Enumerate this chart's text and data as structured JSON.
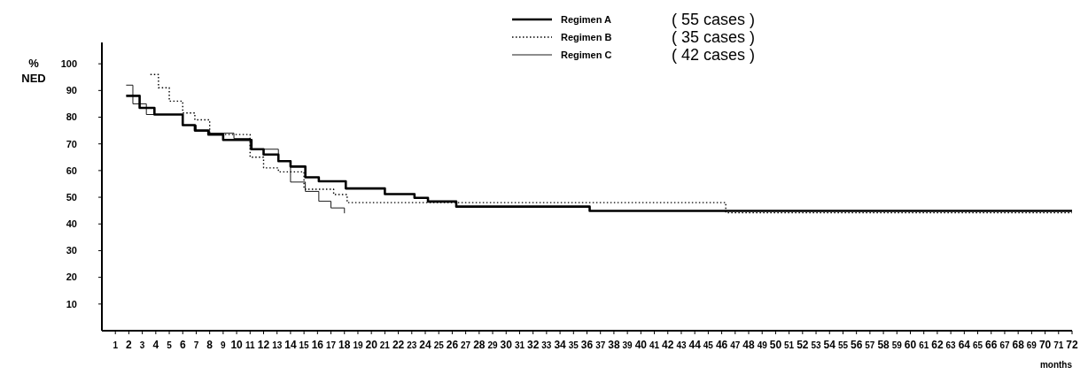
{
  "chart_data": {
    "type": "step",
    "ylabel": "% NED",
    "xlabel": "months",
    "xlim": [
      0,
      72
    ],
    "xticks": [
      1,
      2,
      3,
      4,
      5,
      6,
      7,
      8,
      9,
      10,
      11,
      12,
      13,
      14,
      15,
      16,
      17,
      18,
      19,
      20,
      21,
      22,
      23,
      24,
      25,
      26,
      27,
      28,
      29,
      30,
      31,
      32,
      33,
      34,
      35,
      36,
      37,
      38,
      39,
      40,
      41,
      42,
      43,
      44,
      45,
      46,
      47,
      48,
      49,
      50,
      51,
      52,
      53,
      54,
      55,
      56,
      57,
      58,
      59,
      60,
      61,
      62,
      63,
      64,
      65,
      66,
      67,
      68,
      69,
      70,
      71,
      72
    ],
    "ylim": [
      0,
      108
    ],
    "yticks": [
      10,
      20,
      30,
      40,
      50,
      60,
      70,
      80,
      90,
      100
    ],
    "grid": false,
    "legend": "top",
    "marker": "none",
    "annotations": [
      "( 55 cases )",
      "( 35 cases )",
      "( 42 cases )"
    ],
    "series": [
      {
        "name": "Regimen A",
        "color": "#000000",
        "line_style": "solid",
        "x": [
          1.8,
          2.8,
          3.9,
          6.0,
          6.9,
          7.9,
          9.0,
          11.1,
          12.0,
          13.1,
          14.0,
          15.1,
          16.1,
          18.1,
          21.0,
          23.2,
          24.2,
          26.3,
          36.2,
          72
        ],
        "values": [
          88,
          83.5,
          81,
          77,
          75,
          73.5,
          71.5,
          68,
          66,
          63.5,
          61.5,
          57.5,
          56,
          53.3,
          51.2,
          49.8,
          48.4,
          46.5,
          44.9,
          44.9
        ]
      },
      {
        "name": "Regimen B",
        "color": "#000000",
        "line_style": "dotted",
        "x": [
          3.6,
          4.2,
          5.0,
          6.0,
          6.9,
          8.0,
          11.0,
          12.0,
          13.1,
          15.0,
          17.2,
          18.2,
          46.3,
          72
        ],
        "values": [
          96,
          91,
          86,
          81.6,
          79,
          73.5,
          65,
          61,
          59.5,
          53,
          51,
          48,
          44.2,
          44.2
        ]
      },
      {
        "name": "Regimen C",
        "color": "#000000",
        "line_style": "solid",
        "x": [
          1.8,
          2.3,
          3.3,
          6.0,
          7.0,
          8.0,
          9.8,
          11.0,
          13.1,
          14.0,
          15.1,
          16.1,
          17.0,
          18.0
        ],
        "values": [
          92,
          85,
          81,
          77,
          75,
          74,
          72,
          68,
          63.5,
          55.7,
          52.2,
          48.5,
          46,
          44
        ]
      }
    ]
  }
}
